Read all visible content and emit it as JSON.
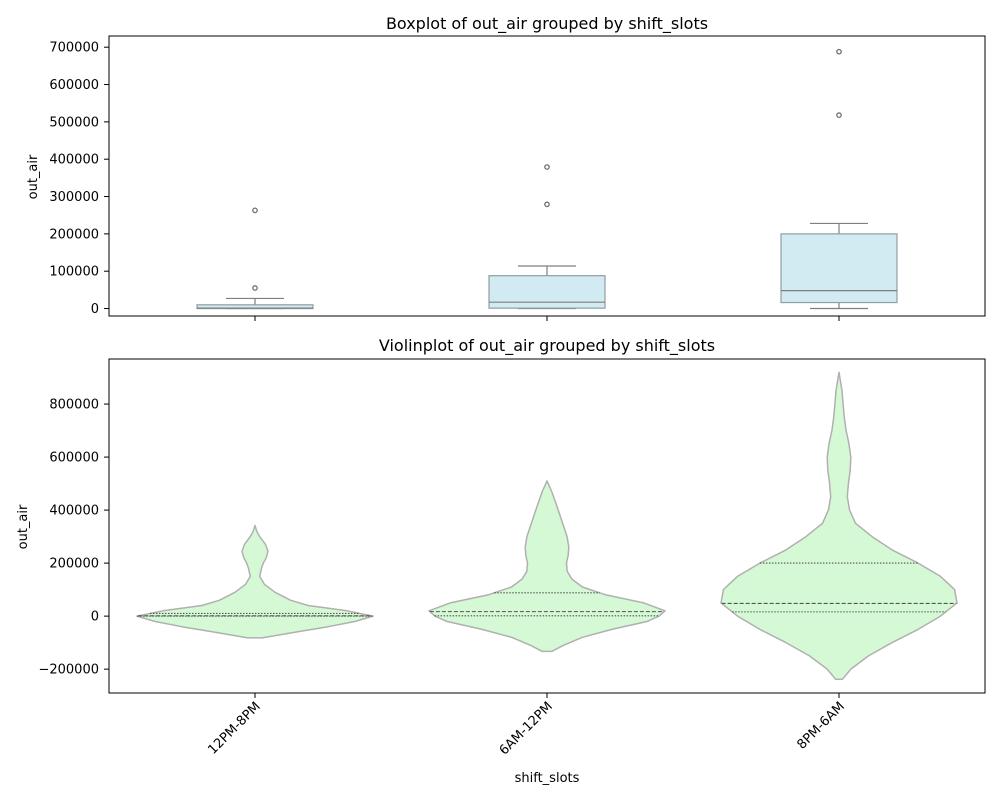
{
  "chart_data": [
    {
      "type": "box",
      "title": "Boxplot of out_air grouped by shift_slots",
      "xlabel": "",
      "ylabel": "out_air",
      "ylim": [
        -20000,
        730000
      ],
      "yticks": [
        0,
        100000,
        200000,
        300000,
        400000,
        500000,
        600000,
        700000
      ],
      "ytick_labels": [
        "0",
        "100000",
        "200000",
        "300000",
        "400000",
        "500000",
        "600000",
        "700000"
      ],
      "categories": [
        "12PM-8PM",
        "6AM-12PM",
        "8PM-6AM"
      ],
      "boxes": [
        {
          "category": "12PM-8PM",
          "whisker_low": 0,
          "q1": 0,
          "median": 1000,
          "q3": 10000,
          "whisker_high": 27000,
          "outliers": [
            55000,
            263000
          ]
        },
        {
          "category": "6AM-12PM",
          "whisker_low": 0,
          "q1": 1000,
          "median": 17000,
          "q3": 88000,
          "whisker_high": 114000,
          "outliers": [
            279000,
            379000
          ]
        },
        {
          "category": "8PM-6AM",
          "whisker_low": 0,
          "q1": 16000,
          "median": 48000,
          "q3": 200000,
          "whisker_high": 228000,
          "outliers": [
            518000,
            688000
          ]
        }
      ],
      "box_color": "#add8e6",
      "grid": false
    },
    {
      "type": "violin",
      "title": "Violinplot of out_air grouped by shift_slots",
      "xlabel": "shift_slots",
      "ylabel": "out_air",
      "ylim": [
        -290000,
        970000
      ],
      "yticks": [
        -200000,
        0,
        200000,
        400000,
        600000,
        800000
      ],
      "ytick_labels": [
        "−200000",
        "0",
        "200000",
        "400000",
        "600000",
        "800000"
      ],
      "categories": [
        "12PM-8PM",
        "6AM-12PM",
        "8PM-6AM"
      ],
      "violins": [
        {
          "category": "12PM-8PM",
          "profile": [
            [
              -82000,
              0.06
            ],
            [
              -60000,
              0.35
            ],
            [
              -40000,
              0.62
            ],
            [
              -20000,
              0.85
            ],
            [
              0,
              1.0
            ],
            [
              20000,
              0.78
            ],
            [
              40000,
              0.45
            ],
            [
              60000,
              0.3
            ],
            [
              90000,
              0.17
            ],
            [
              120000,
              0.08
            ],
            [
              150000,
              0.04
            ],
            [
              180000,
              0.055
            ],
            [
              200000,
              0.07
            ],
            [
              220000,
              0.095
            ],
            [
              245000,
              0.11
            ],
            [
              270000,
              0.09
            ],
            [
              300000,
              0.04
            ],
            [
              320000,
              0.015
            ],
            [
              342000,
              0.0
            ]
          ],
          "q1": 0,
          "median": 1000,
          "q3": 10000
        },
        {
          "category": "6AM-12PM",
          "profile": [
            [
              -133000,
              0.04
            ],
            [
              -110000,
              0.14
            ],
            [
              -80000,
              0.3
            ],
            [
              -50000,
              0.55
            ],
            [
              -20000,
              0.85
            ],
            [
              0,
              0.95
            ],
            [
              20000,
              1.0
            ],
            [
              50000,
              0.82
            ],
            [
              80000,
              0.5
            ],
            [
              110000,
              0.3
            ],
            [
              140000,
              0.21
            ],
            [
              170000,
              0.17
            ],
            [
              200000,
              0.165
            ],
            [
              230000,
              0.18
            ],
            [
              260000,
              0.185
            ],
            [
              300000,
              0.17
            ],
            [
              340000,
              0.14
            ],
            [
              380000,
              0.11
            ],
            [
              420000,
              0.08
            ],
            [
              470000,
              0.04
            ],
            [
              510000,
              0.0
            ]
          ],
          "q1": 1000,
          "median": 17000,
          "q3": 88000
        },
        {
          "category": "8PM-6AM",
          "profile": [
            [
              -238000,
              0.03
            ],
            [
              -200000,
              0.1
            ],
            [
              -150000,
              0.25
            ],
            [
              -100000,
              0.45
            ],
            [
              -50000,
              0.67
            ],
            [
              0,
              0.86
            ],
            [
              50000,
              1.0
            ],
            [
              100000,
              0.98
            ],
            [
              150000,
              0.86
            ],
            [
              200000,
              0.67
            ],
            [
              250000,
              0.45
            ],
            [
              300000,
              0.28
            ],
            [
              350000,
              0.14
            ],
            [
              400000,
              0.09
            ],
            [
              450000,
              0.07
            ],
            [
              500000,
              0.08
            ],
            [
              550000,
              0.095
            ],
            [
              600000,
              0.1
            ],
            [
              650000,
              0.085
            ],
            [
              700000,
              0.06
            ],
            [
              750000,
              0.045
            ],
            [
              800000,
              0.035
            ],
            [
              850000,
              0.025
            ],
            [
              900000,
              0.008
            ],
            [
              920000,
              0.0
            ]
          ],
          "q1": 16000,
          "median": 48000,
          "q3": 200000
        }
      ],
      "violin_color": "#90ee90",
      "grid": false
    }
  ]
}
